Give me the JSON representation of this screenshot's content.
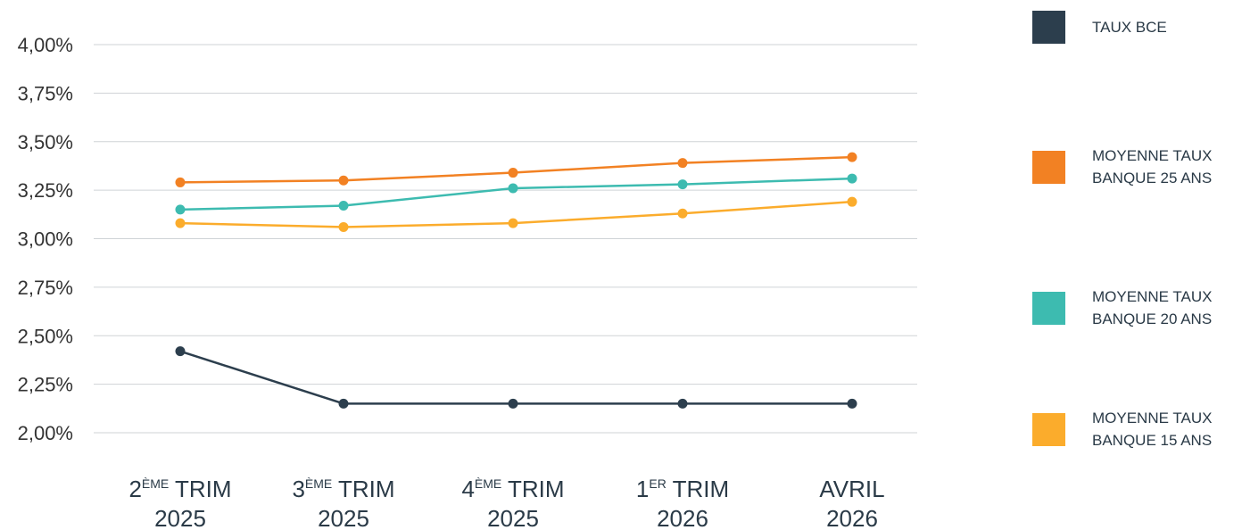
{
  "chart_data": {
    "type": "line",
    "categories": [
      {
        "pre": "2",
        "sup": "ÈME",
        "post": " TRIM",
        "line2": "2025"
      },
      {
        "pre": "3",
        "sup": "ÈME",
        "post": " TRIM",
        "line2": "2025"
      },
      {
        "pre": "4",
        "sup": "ÈME",
        "post": " TRIM",
        "line2": "2025"
      },
      {
        "pre": "1",
        "sup": "ER",
        "post": " TRIM",
        "line2": "2026"
      },
      {
        "pre": "AVRIL",
        "sup": "",
        "post": "",
        "line2": "2026"
      }
    ],
    "y_ticks": [
      "2,00%",
      "2,25%",
      "2,50%",
      "2,75%",
      "3,00%",
      "3,25%",
      "3,50%",
      "3,75%",
      "4,00%"
    ],
    "y_tick_values": [
      2.0,
      2.25,
      2.5,
      2.75,
      3.0,
      3.25,
      3.5,
      3.75,
      4.0
    ],
    "ylim": [
      2.0,
      4.0
    ],
    "grid": true,
    "legend_position": "right",
    "series": [
      {
        "name": "TAUX BCE",
        "color": "#2c3e4d",
        "values": [
          2.42,
          2.15,
          2.15,
          2.15,
          2.15
        ]
      },
      {
        "name": "MOYENNE TAUX\nBANQUE 25 ANS",
        "color": "#f28123",
        "values": [
          3.29,
          3.3,
          3.34,
          3.39,
          3.42
        ]
      },
      {
        "name": "MOYENNE TAUX\nBANQUE 20 ANS",
        "color": "#3dbbb0",
        "values": [
          3.15,
          3.17,
          3.26,
          3.28,
          3.31
        ]
      },
      {
        "name": "MOYENNE TAUX\nBANQUE 15 ANS",
        "color": "#fbac2c",
        "values": [
          3.08,
          3.06,
          3.08,
          3.13,
          3.19
        ]
      }
    ]
  }
}
